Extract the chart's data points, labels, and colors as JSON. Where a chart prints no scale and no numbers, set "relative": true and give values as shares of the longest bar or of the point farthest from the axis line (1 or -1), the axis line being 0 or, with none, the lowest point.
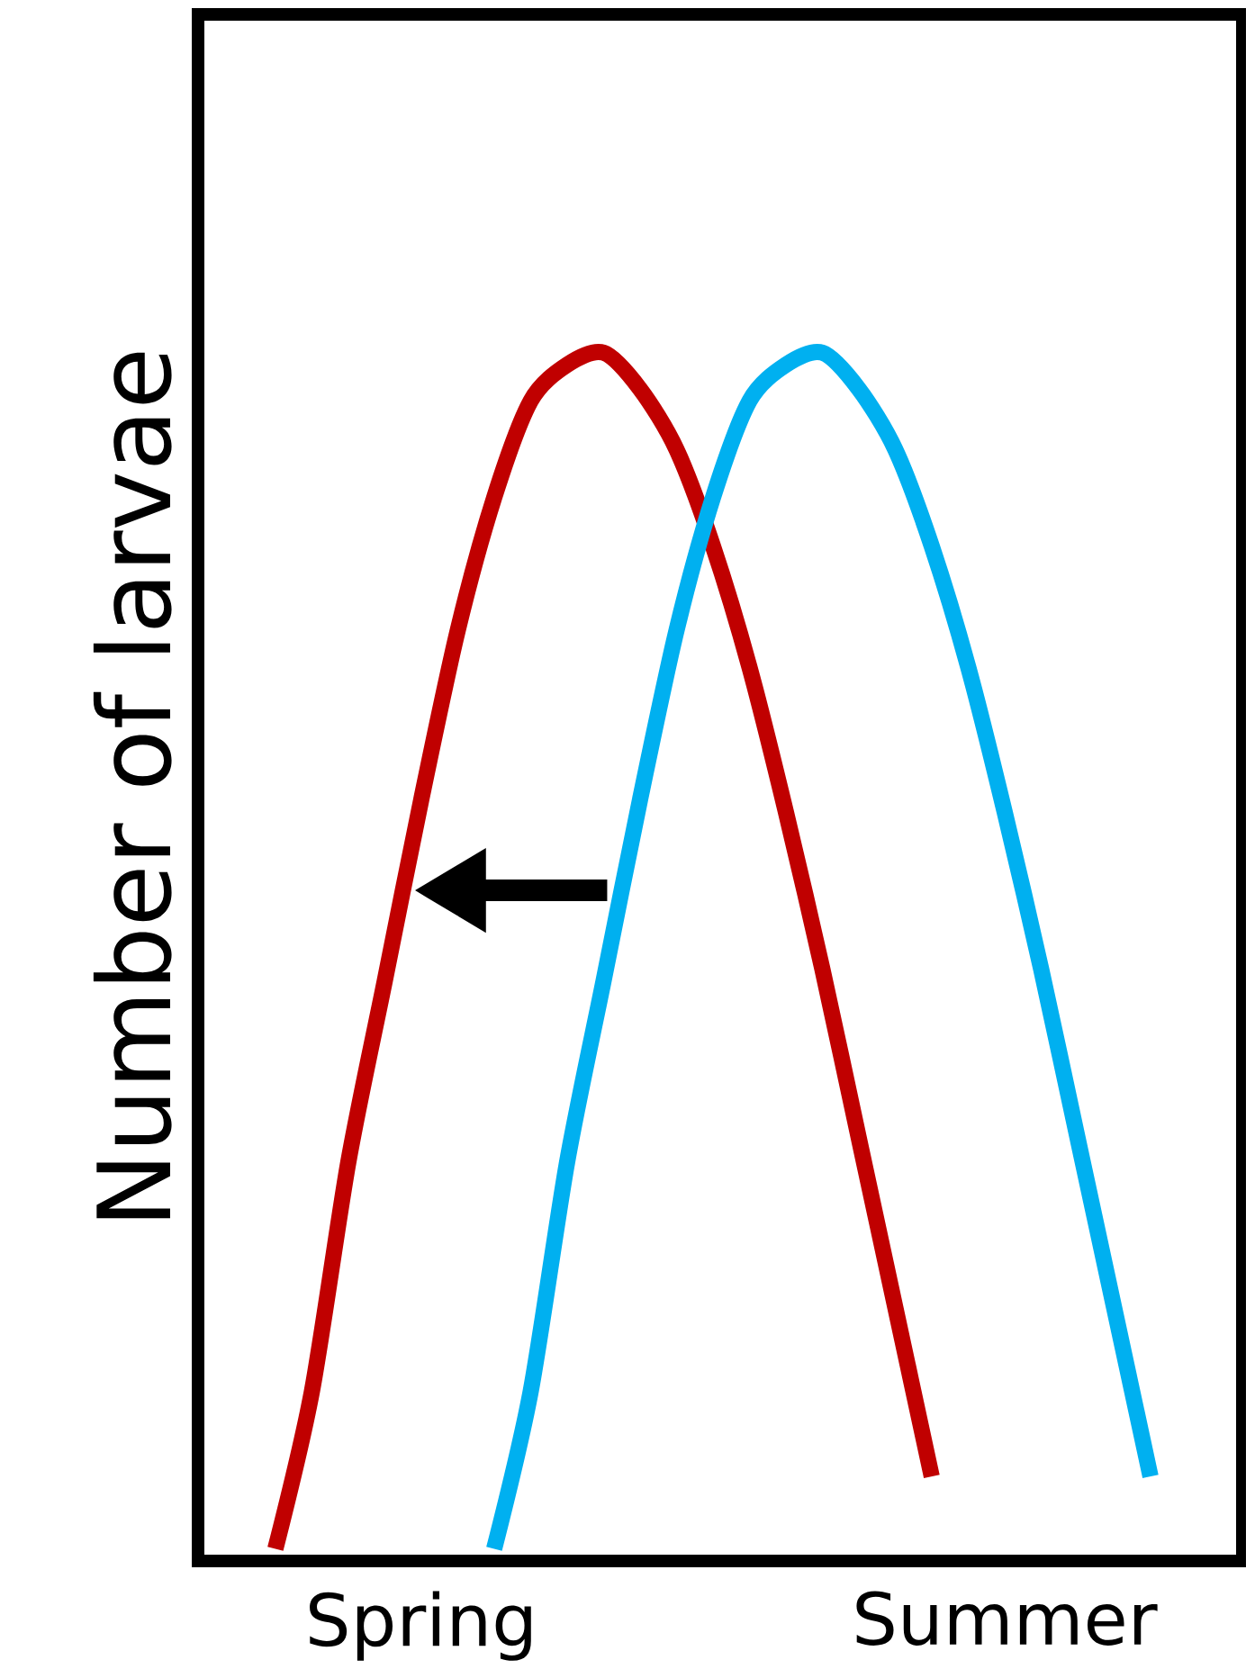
{
  "chart_data": {
    "type": "line",
    "relative": true,
    "ylabel": "Number of larvae",
    "categories": [
      null,
      null,
      null,
      null,
      null,
      null,
      "Spring",
      null,
      null,
      null,
      null,
      null,
      null,
      null,
      null,
      null,
      null,
      null,
      null,
      null,
      null,
      null,
      "Summer",
      null,
      null,
      null,
      null,
      null,
      null
    ],
    "marker": "none",
    "line_style": "solid",
    "grid": false,
    "series": [
      {
        "color": "#c00000",
        "values": [
          null,
          null,
          0.01,
          0.14,
          0.33,
          0.48,
          0.63,
          0.77,
          0.88,
          0.96,
          0.99,
          1.0,
          0.97,
          0.92,
          0.84,
          0.74,
          0.62,
          0.49,
          0.35,
          0.21,
          0.07,
          null,
          null,
          null,
          null,
          null,
          null,
          null,
          null
        ]
      },
      {
        "color": "#00b0f0",
        "values": [
          null,
          null,
          null,
          null,
          null,
          null,
          null,
          null,
          0.01,
          0.14,
          0.33,
          0.48,
          0.63,
          0.77,
          0.88,
          0.96,
          0.99,
          1.0,
          0.97,
          0.92,
          0.84,
          0.74,
          0.62,
          0.49,
          0.35,
          0.21,
          0.07,
          null,
          null
        ]
      }
    ]
  }
}
